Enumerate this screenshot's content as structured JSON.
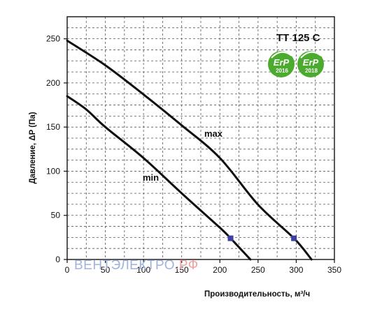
{
  "chart_data": {
    "type": "line",
    "model": "TT 125 C",
    "xlabel": "Производительность,  м³/ч",
    "ylabel": "Давление, ΔP (Па)",
    "xlim": [
      0,
      350
    ],
    "ylim": [
      0,
      275
    ],
    "x_ticks": [
      0,
      50,
      100,
      150,
      200,
      250,
      300,
      350
    ],
    "y_ticks": [
      0,
      50,
      100,
      150,
      200,
      250
    ],
    "grid": true,
    "series": [
      {
        "name": "max",
        "points": [
          [
            0,
            248
          ],
          [
            50,
            220
          ],
          [
            100,
            187
          ],
          [
            150,
            152
          ],
          [
            200,
            115
          ],
          [
            250,
            62
          ],
          [
            297,
            24
          ],
          [
            320,
            0
          ]
        ]
      },
      {
        "name": "min",
        "points": [
          [
            0,
            185
          ],
          [
            25,
            170
          ],
          [
            50,
            150
          ],
          [
            100,
            115
          ],
          [
            150,
            75
          ],
          [
            200,
            36
          ],
          [
            214,
            24
          ],
          [
            240,
            0
          ]
        ]
      }
    ],
    "markers": [
      {
        "series": "min",
        "x": 214,
        "y": 24
      },
      {
        "series": "max",
        "x": 297,
        "y": 24
      }
    ],
    "badges": [
      {
        "text": "ErP",
        "year": "2016"
      },
      {
        "text": "ErP",
        "year": "2018"
      }
    ],
    "watermark": {
      "part1": "ВЕНТЭЛЕКТРО",
      "part2": ".РФ"
    }
  },
  "colors": {
    "curve": "#111111",
    "grid": "#555555",
    "marker": "#3b3f9e",
    "badge_green": "#4aab2e",
    "watermark_blue": "#9fb3dd",
    "watermark_red": "#f2a0a0"
  }
}
